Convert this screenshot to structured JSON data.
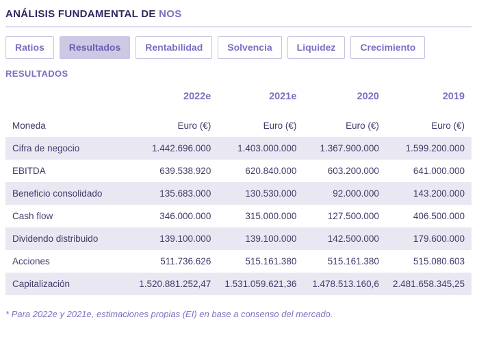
{
  "header": {
    "title_prefix": "ANÁLISIS FUNDAMENTAL DE",
    "title_suffix": "NOS"
  },
  "tabs": {
    "items": [
      {
        "id": "ratios",
        "label": "Ratios",
        "active": false
      },
      {
        "id": "resultados",
        "label": "Resultados",
        "active": true
      },
      {
        "id": "rentabilidad",
        "label": "Rentabilidad",
        "active": false
      },
      {
        "id": "solvencia",
        "label": "Solvencia",
        "active": false
      },
      {
        "id": "liquidez",
        "label": "Liquidez",
        "active": false
      },
      {
        "id": "crecimiento",
        "label": "Crecimiento",
        "active": false
      }
    ]
  },
  "section": {
    "title": "RESULTADOS"
  },
  "table": {
    "columns": [
      "2022e",
      "2021e",
      "2020",
      "2019"
    ],
    "rows": [
      {
        "label": "Moneda",
        "values": [
          "Euro (€)",
          "Euro (€)",
          "Euro (€)",
          "Euro (€)"
        ]
      },
      {
        "label": "Cifra de negocio",
        "values": [
          "1.442.696.000",
          "1.403.000.000",
          "1.367.900.000",
          "1.599.200.000"
        ]
      },
      {
        "label": "EBITDA",
        "values": [
          "639.538.920",
          "620.840.000",
          "603.200.000",
          "641.000.000"
        ]
      },
      {
        "label": "Beneficio consolidado",
        "values": [
          "135.683.000",
          "130.530.000",
          "92.000.000",
          "143.200.000"
        ]
      },
      {
        "label": "Cash flow",
        "values": [
          "346.000.000",
          "315.000.000",
          "127.500.000",
          "406.500.000"
        ]
      },
      {
        "label": "Dividendo distribuido",
        "values": [
          "139.100.000",
          "139.100.000",
          "142.500.000",
          "179.600.000"
        ]
      },
      {
        "label": "Acciones",
        "values": [
          "511.736.626",
          "515.161.380",
          "515.161.380",
          "515.080.603"
        ]
      },
      {
        "label": "Capitalización",
        "values": [
          "1.520.881.252,47",
          "1.531.059.621,36",
          "1.478.513.160,6",
          "2.481.658.345,25"
        ]
      }
    ]
  },
  "footnote": "* Para 2022e y 2021e, estimaciones propias (EI) en base a consenso del mercado.",
  "colors": {
    "accent": "#7b6fc1",
    "dark": "#2c2860",
    "row_shade": "#e9e7f1",
    "active_tab_bg": "#cdc8e3"
  }
}
